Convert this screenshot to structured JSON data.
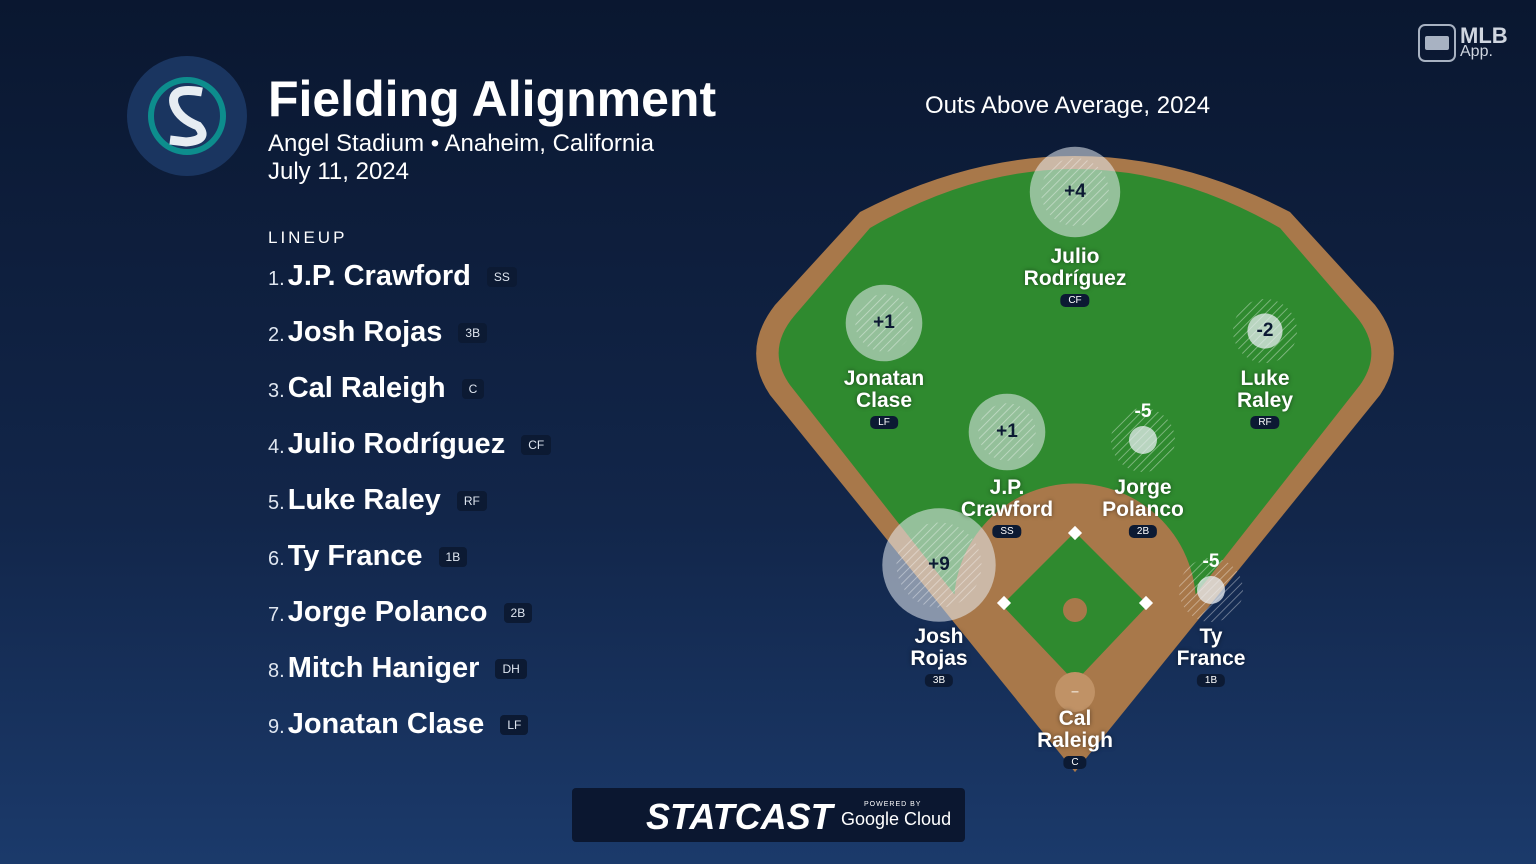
{
  "logo": {
    "line1": "MLB",
    "line2": "App."
  },
  "header": {
    "title": "Fielding Alignment",
    "venue": "Angel Stadium • Anaheim, California",
    "date": "July 11, 2024"
  },
  "lineup": {
    "title": "LINEUP",
    "players": [
      {
        "number": "1.",
        "name": "J.P. Crawford",
        "position": "SS",
        "oaa": 1,
        "oaa_label": "+1"
      },
      {
        "number": "2.",
        "name": "Josh Rojas",
        "position": "3B",
        "oaa": 9,
        "oaa_label": "+9"
      },
      {
        "number": "3.",
        "name": "Cal Raleigh",
        "position": "C",
        "oaa": null,
        "oaa_label": "–"
      },
      {
        "number": "4.",
        "name": "Julio Rodríguez",
        "position": "CF",
        "oaa": 4,
        "oaa_label": "+4"
      },
      {
        "number": "5.",
        "name": "Luke Raley",
        "position": "RF",
        "oaa": -2,
        "oaa_label": "-2"
      },
      {
        "number": "6.",
        "name": "Ty France",
        "position": "1B",
        "oaa": -5,
        "oaa_label": "-5"
      },
      {
        "number": "7.",
        "name": "Jorge Polanco",
        "position": "2B",
        "oaa": -5,
        "oaa_label": "-5"
      },
      {
        "number": "8.",
        "name": "Mitch Haniger",
        "position": "DH"
      },
      {
        "number": "9.",
        "name": "Jonatan Clase",
        "position": "LF",
        "oaa": 1,
        "oaa_label": "+1"
      }
    ]
  },
  "field": {
    "title": "Outs Above Average, 2024"
  },
  "footer": {
    "brand": "STATCAST",
    "powered_by": "POWERED BY",
    "partner": "Google Cloud"
  }
}
